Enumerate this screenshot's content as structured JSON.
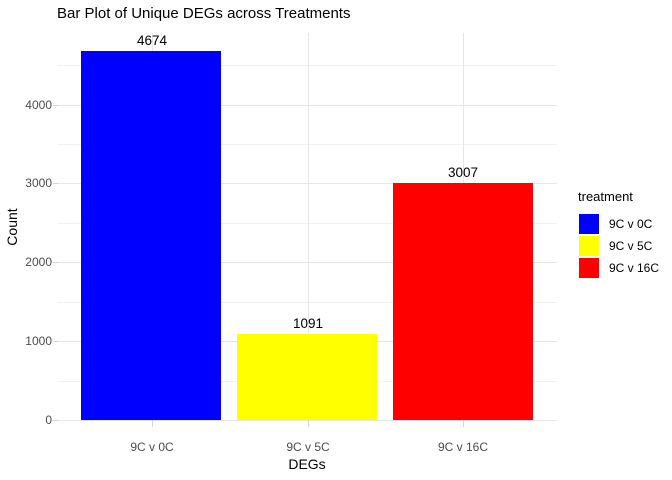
{
  "title": "Bar Plot of Unique DEGs across Treatments",
  "chart_data": {
    "type": "bar",
    "title": "Bar Plot of Unique DEGs across Treatments",
    "xlabel": "DEGs",
    "ylabel": "Count",
    "categories": [
      "9C v 0C",
      "9C v 5C",
      "9C v 16C"
    ],
    "values": [
      4674,
      1091,
      3007
    ],
    "bar_colors": [
      "#0000ff",
      "#ffff00",
      "#ff0000"
    ],
    "ylim": [
      0,
      4908
    ],
    "yticks": [
      0,
      1000,
      2000,
      3000,
      4000
    ],
    "yticks_minor": [
      500,
      1500,
      2500,
      3500,
      4500
    ],
    "grid": "major and minor horizontal, major vertical at category centers",
    "legend_position": "right",
    "legend": {
      "title": "treatment",
      "entries": [
        {
          "label": "9C v 0C",
          "color": "#0000ff"
        },
        {
          "label": "9C v 5C",
          "color": "#ffff00"
        },
        {
          "label": "9C v 16C",
          "color": "#ff0000"
        }
      ]
    }
  },
  "colors": {
    "background": "#ffffff",
    "grid_major": "#e6e6e6",
    "grid_minor": "#f2f2f2",
    "tick_mark": "#d4d4d4",
    "tick_label": "#4d4d4d",
    "text": "#000000"
  }
}
